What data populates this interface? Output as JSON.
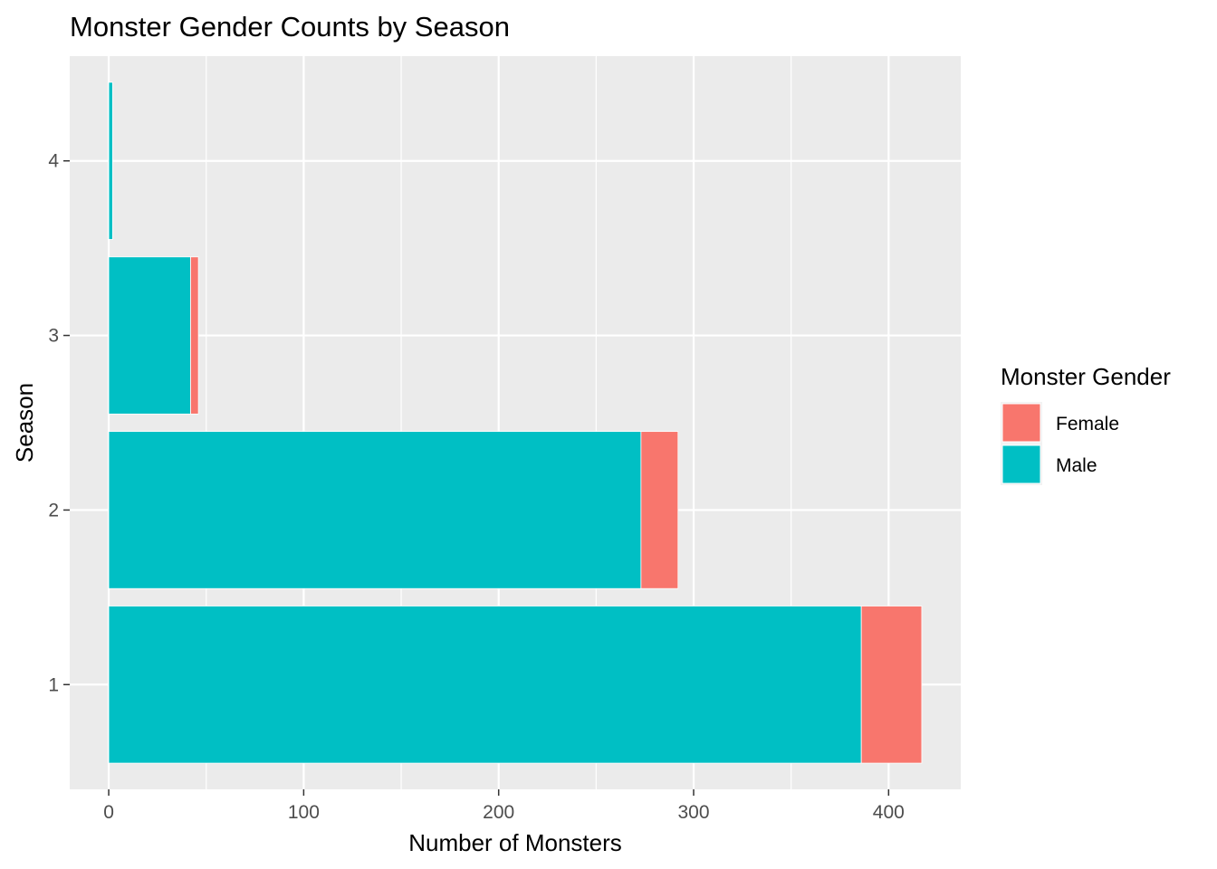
{
  "chart_data": {
    "type": "bar",
    "orientation": "horizontal",
    "stacked": true,
    "title": "Monster Gender Counts by Season",
    "xlabel": "Number of Monsters",
    "ylabel": "Season",
    "categories": [
      "1",
      "2",
      "3",
      "4"
    ],
    "series": [
      {
        "name": "Male",
        "color": "#00BFC4",
        "values": [
          386,
          273,
          42,
          2
        ]
      },
      {
        "name": "Female",
        "color": "#F8766D",
        "values": [
          31,
          19,
          4,
          0
        ]
      }
    ],
    "xlim": [
      -20,
      437
    ],
    "xticks": [
      0,
      100,
      200,
      300,
      400
    ],
    "x_minor_gridlines": [
      50,
      150,
      250,
      350
    ],
    "grid": true,
    "panel_background": "#EBEBEB",
    "legend": {
      "title": "Monster Gender",
      "position": "right",
      "entries": [
        {
          "label": "Female",
          "color": "#F8766D"
        },
        {
          "label": "Male",
          "color": "#00BFC4"
        }
      ]
    }
  }
}
